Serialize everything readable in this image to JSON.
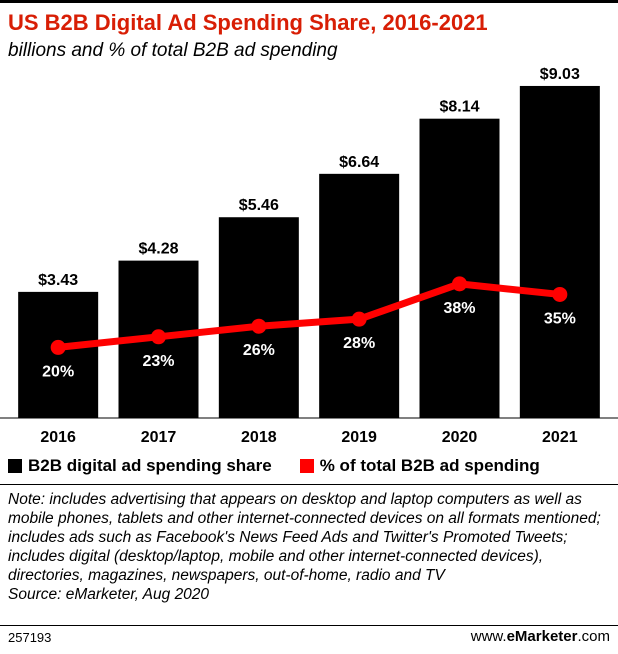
{
  "title": "US B2B Digital Ad Spending Share, 2016-2021",
  "subtitle": "billions and % of total B2B ad spending",
  "legend": {
    "bar_label": "B2B digital ad spending share",
    "line_label": "% of total B2B ad spending"
  },
  "note": "Note: includes advertising that appears on desktop and laptop computers as well as mobile phones, tablets and other internet-connected devices on all formats mentioned; includes ads such as Facebook's News Feed Ads and Twitter's Promoted Tweets; includes digital (desktop/laptop, mobile and other internet-connected devices), directories, magazines, newspapers, out-of-home, radio and TV",
  "source": "Source: eMarketer, Aug 2020",
  "footer": {
    "id": "257193",
    "site_prefix": "www.",
    "site_brand": "eMarketer",
    "site_suffix": ".com"
  },
  "colors": {
    "bar": "#000000",
    "line": "#ff0000",
    "title": "#d81e05"
  },
  "chart_data": {
    "type": "bar",
    "categories": [
      "2016",
      "2017",
      "2018",
      "2019",
      "2020",
      "2021"
    ],
    "series": [
      {
        "name": "B2B digital ad spending share",
        "type": "bar",
        "values": [
          3.43,
          4.28,
          5.46,
          6.64,
          8.14,
          9.03
        ],
        "labels": [
          "$3.43",
          "$4.28",
          "$5.46",
          "$6.64",
          "$8.14",
          "$9.03"
        ]
      },
      {
        "name": "% of total B2B ad spending",
        "type": "line",
        "values": [
          20,
          23,
          26,
          28,
          38,
          35
        ],
        "labels": [
          "20%",
          "23%",
          "26%",
          "28%",
          "38%",
          "35%"
        ]
      }
    ],
    "ylim": [
      0,
      9.6
    ],
    "ylim_secondary": [
      0,
      100
    ],
    "legend_position": "bottom"
  }
}
